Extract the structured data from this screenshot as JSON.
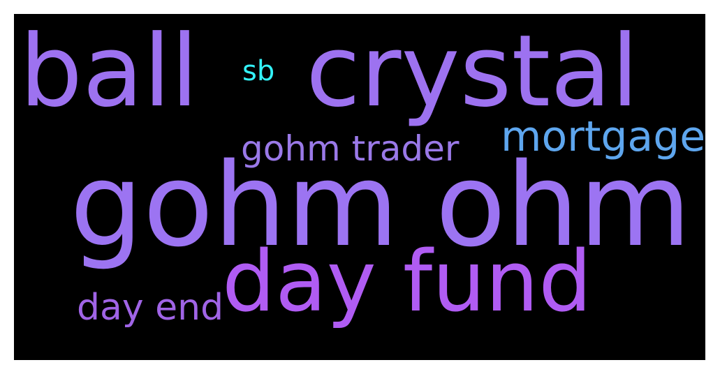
{
  "wordcloud": {
    "background_color": "#000000",
    "words": [
      {
        "id": "ball",
        "text": "ball",
        "color": "#9d72f0"
      },
      {
        "id": "crystal",
        "text": "crystal",
        "color": "#9d72f0"
      },
      {
        "id": "sb",
        "text": "sb",
        "color": "#33f2f8"
      },
      {
        "id": "gohm-trader",
        "text": "gohm trader",
        "color": "#9a79e8"
      },
      {
        "id": "mortgage",
        "text": "mortgage",
        "color": "#5ea6ee"
      },
      {
        "id": "gohm-ohm",
        "text": "gohm ohm",
        "color": "#9c74f2"
      },
      {
        "id": "day-fund",
        "text": "day fund",
        "color": "#b05cf3"
      },
      {
        "id": "day-end",
        "text": "day end",
        "color": "#a064e6"
      }
    ]
  }
}
